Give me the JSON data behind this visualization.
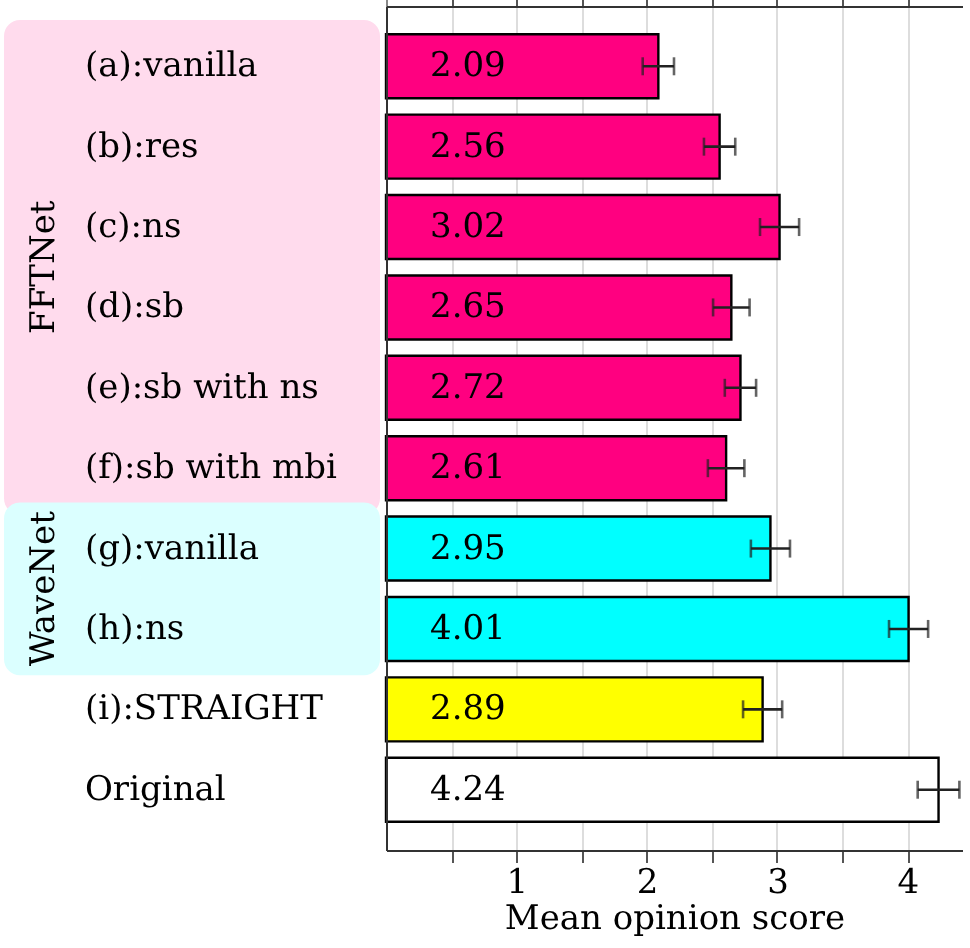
{
  "chart_data": {
    "type": "bar",
    "orientation": "horizontal",
    "categories": [
      "(a):vanilla",
      "(b):res",
      "(c):ns",
      "(d):sb",
      "(e):sb with ns",
      "(f):sb with mbi",
      "(g):vanilla",
      "(h):ns",
      "(i):STRAIGHT",
      "Original"
    ],
    "values": [
      2.09,
      2.56,
      3.02,
      2.65,
      2.72,
      2.61,
      2.95,
      4.01,
      2.89,
      4.24
    ],
    "colors": [
      "#ff0080",
      "#ff0080",
      "#ff0080",
      "#ff0080",
      "#ff0080",
      "#ff0080",
      "#00ffff",
      "#00ffff",
      "#ffff00",
      "#ffffff"
    ],
    "errors": [
      0.12,
      0.12,
      0.15,
      0.14,
      0.12,
      0.14,
      0.15,
      0.15,
      0.15,
      0.16
    ],
    "xlabel": "Mean opinion score",
    "xlim": [
      0,
      4.42
    ],
    "xticks": [
      {
        "value": 0.5,
        "label": null
      },
      1,
      {
        "value": 1.5,
        "label": null
      },
      2,
      {
        "value": 2.5,
        "label": null
      },
      3,
      {
        "value": 3.5,
        "label": null
      },
      4
    ],
    "annotations": [
      "FFTNet",
      "WaveNet"
    ],
    "data_labels": true,
    "grid": "x"
  }
}
